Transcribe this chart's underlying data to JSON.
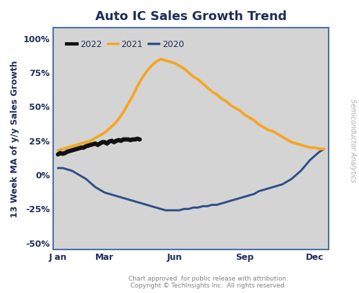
{
  "title": "Auto IC Sales Growth Trend",
  "ylabel": "13 Week MA of y/y Sales Growth",
  "yticks": [
    -50,
    -25,
    0,
    25,
    50,
    75,
    100
  ],
  "ytick_labels": [
    "-50%",
    "-25%",
    "0%",
    "25%",
    "50%",
    "75%",
    "100%"
  ],
  "xtick_labels": [
    "J an",
    "Mar",
    "Jun",
    "Sep",
    "Dec"
  ],
  "xtick_positions": [
    0,
    2,
    5,
    8,
    11
  ],
  "ylim": [
    -55,
    108
  ],
  "xlim": [
    -0.2,
    11.6
  ],
  "plot_bg_color": "#d4d4d4",
  "fig_bg_color": "#ffffff",
  "border_color": "#4a6fa5",
  "title_color": "#1f2d5a",
  "axis_label_color": "#1f2d5a",
  "tick_label_color": "#1f2d5a",
  "footnote_color": "#808080",
  "right_label": "Semiconductor Analytics",
  "footnote1": "Chart approved  for public release with attribution.",
  "footnote2": "Copyright © TechInsights Inc.  All rights reserved.",
  "series_2022": {
    "x": [
      0.0,
      0.1,
      0.2,
      0.3,
      0.4,
      0.5,
      0.6,
      0.7,
      0.8,
      0.9,
      1.0,
      1.1,
      1.2,
      1.3,
      1.4,
      1.5,
      1.6,
      1.7,
      1.8,
      1.9,
      2.0,
      2.1,
      2.2,
      2.3,
      2.4,
      2.5,
      2.6,
      2.7,
      2.8,
      2.9,
      3.0,
      3.1,
      3.2,
      3.3,
      3.4,
      3.5
    ],
    "y": [
      15,
      16,
      15.5,
      16,
      17,
      17.5,
      18,
      18.5,
      19,
      19.5,
      20,
      20,
      21,
      21.5,
      22,
      22.5,
      23,
      22,
      23,
      24,
      24,
      23,
      24.5,
      25,
      24,
      25,
      25.5,
      25,
      26,
      26,
      26,
      25.5,
      26,
      26,
      26.5,
      26
    ],
    "color": "#111111",
    "linewidth": 4.5,
    "label": "2022"
  },
  "series_2021": {
    "x": [
      0.0,
      0.2,
      0.4,
      0.6,
      0.8,
      1.0,
      1.2,
      1.4,
      1.6,
      1.8,
      2.0,
      2.2,
      2.4,
      2.6,
      2.8,
      3.0,
      3.2,
      3.4,
      3.6,
      3.8,
      4.0,
      4.2,
      4.4,
      4.6,
      4.8,
      5.0,
      5.2,
      5.4,
      5.6,
      5.8,
      6.0,
      6.2,
      6.4,
      6.6,
      6.8,
      7.0,
      7.2,
      7.4,
      7.6,
      7.8,
      8.0,
      8.2,
      8.4,
      8.6,
      8.8,
      9.0,
      9.2,
      9.4,
      9.6,
      9.8,
      10.0,
      10.2,
      10.4,
      10.6,
      10.8,
      11.0,
      11.2,
      11.4
    ],
    "y": [
      18,
      19,
      20,
      21,
      22,
      23,
      24,
      25,
      27,
      29,
      31,
      34,
      37,
      41,
      46,
      52,
      58,
      65,
      71,
      76,
      80,
      83,
      85,
      84,
      83,
      82,
      80,
      78,
      75,
      72,
      70,
      67,
      64,
      61,
      59,
      56,
      54,
      51,
      49,
      47,
      44,
      42,
      40,
      37,
      35,
      33,
      32,
      30,
      28,
      26,
      24,
      23,
      22,
      21,
      20,
      20,
      19,
      19
    ],
    "color": "#f5a623",
    "linewidth": 2.8,
    "label": "2021"
  },
  "series_2020": {
    "x": [
      0.0,
      0.2,
      0.4,
      0.6,
      0.8,
      1.0,
      1.2,
      1.4,
      1.6,
      1.8,
      2.0,
      2.2,
      2.4,
      2.6,
      2.8,
      3.0,
      3.2,
      3.4,
      3.6,
      3.8,
      4.0,
      4.2,
      4.4,
      4.6,
      4.8,
      5.0,
      5.2,
      5.4,
      5.6,
      5.8,
      6.0,
      6.2,
      6.4,
      6.6,
      6.8,
      7.0,
      7.2,
      7.4,
      7.6,
      7.8,
      8.0,
      8.2,
      8.4,
      8.6,
      8.8,
      9.0,
      9.2,
      9.4,
      9.6,
      9.8,
      10.0,
      10.2,
      10.4,
      10.6,
      10.8,
      11.0,
      11.2,
      11.4
    ],
    "y": [
      5,
      5,
      4,
      3,
      1,
      -1,
      -3,
      -6,
      -9,
      -11,
      -13,
      -14,
      -15,
      -16,
      -17,
      -18,
      -19,
      -20,
      -21,
      -22,
      -23,
      -24,
      -25,
      -26,
      -26,
      -26,
      -26,
      -25,
      -25,
      -24,
      -24,
      -23,
      -23,
      -22,
      -22,
      -21,
      -20,
      -19,
      -18,
      -17,
      -16,
      -15,
      -14,
      -12,
      -11,
      -10,
      -9,
      -8,
      -7,
      -5,
      -3,
      0,
      3,
      7,
      11,
      14,
      17,
      19
    ],
    "color": "#2e4f8a",
    "linewidth": 2.2,
    "label": "2020"
  }
}
